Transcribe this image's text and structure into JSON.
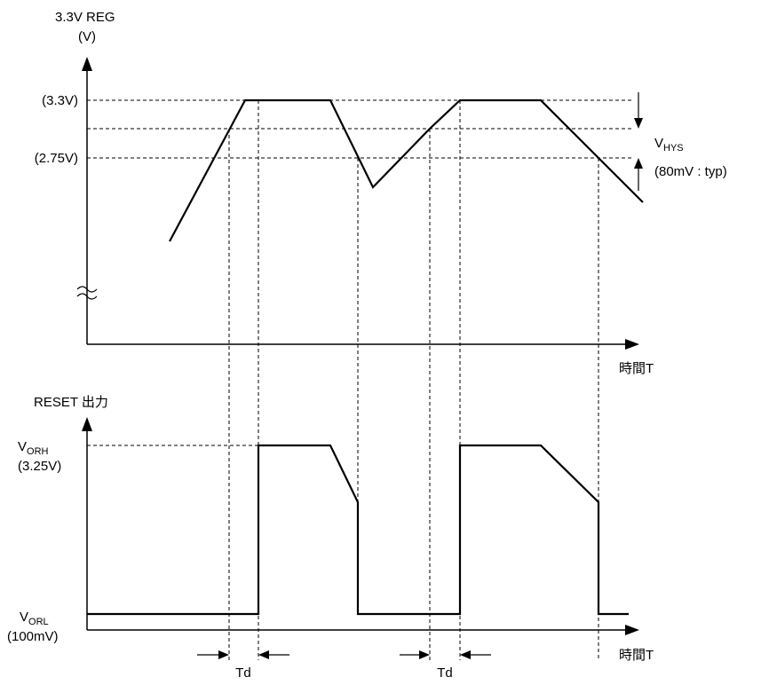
{
  "top_chart": {
    "y_axis_label_line1": "3.3V REG",
    "y_axis_label_line2": "(V)",
    "x_axis_label": "時間T",
    "level_high_label": "(3.3V)",
    "level_low_label": "(2.75V)",
    "vhys_main": "V",
    "vhys_sub": "HYS",
    "vhys_note": "(80mV : typ)",
    "break_symbol": "≈"
  },
  "bottom_chart": {
    "y_axis_label": "RESET 出力",
    "x_axis_label": "時間T",
    "voh_main": "V",
    "voh_sub": "ORH",
    "voh_value": "(3.25V)",
    "vol_main": "V",
    "vol_sub": "ORL",
    "vol_value": "(100mV)",
    "delay_label_1": "Td",
    "delay_label_2": "Td"
  },
  "colors": {
    "stroke": "#000000",
    "background": "#ffffff"
  }
}
